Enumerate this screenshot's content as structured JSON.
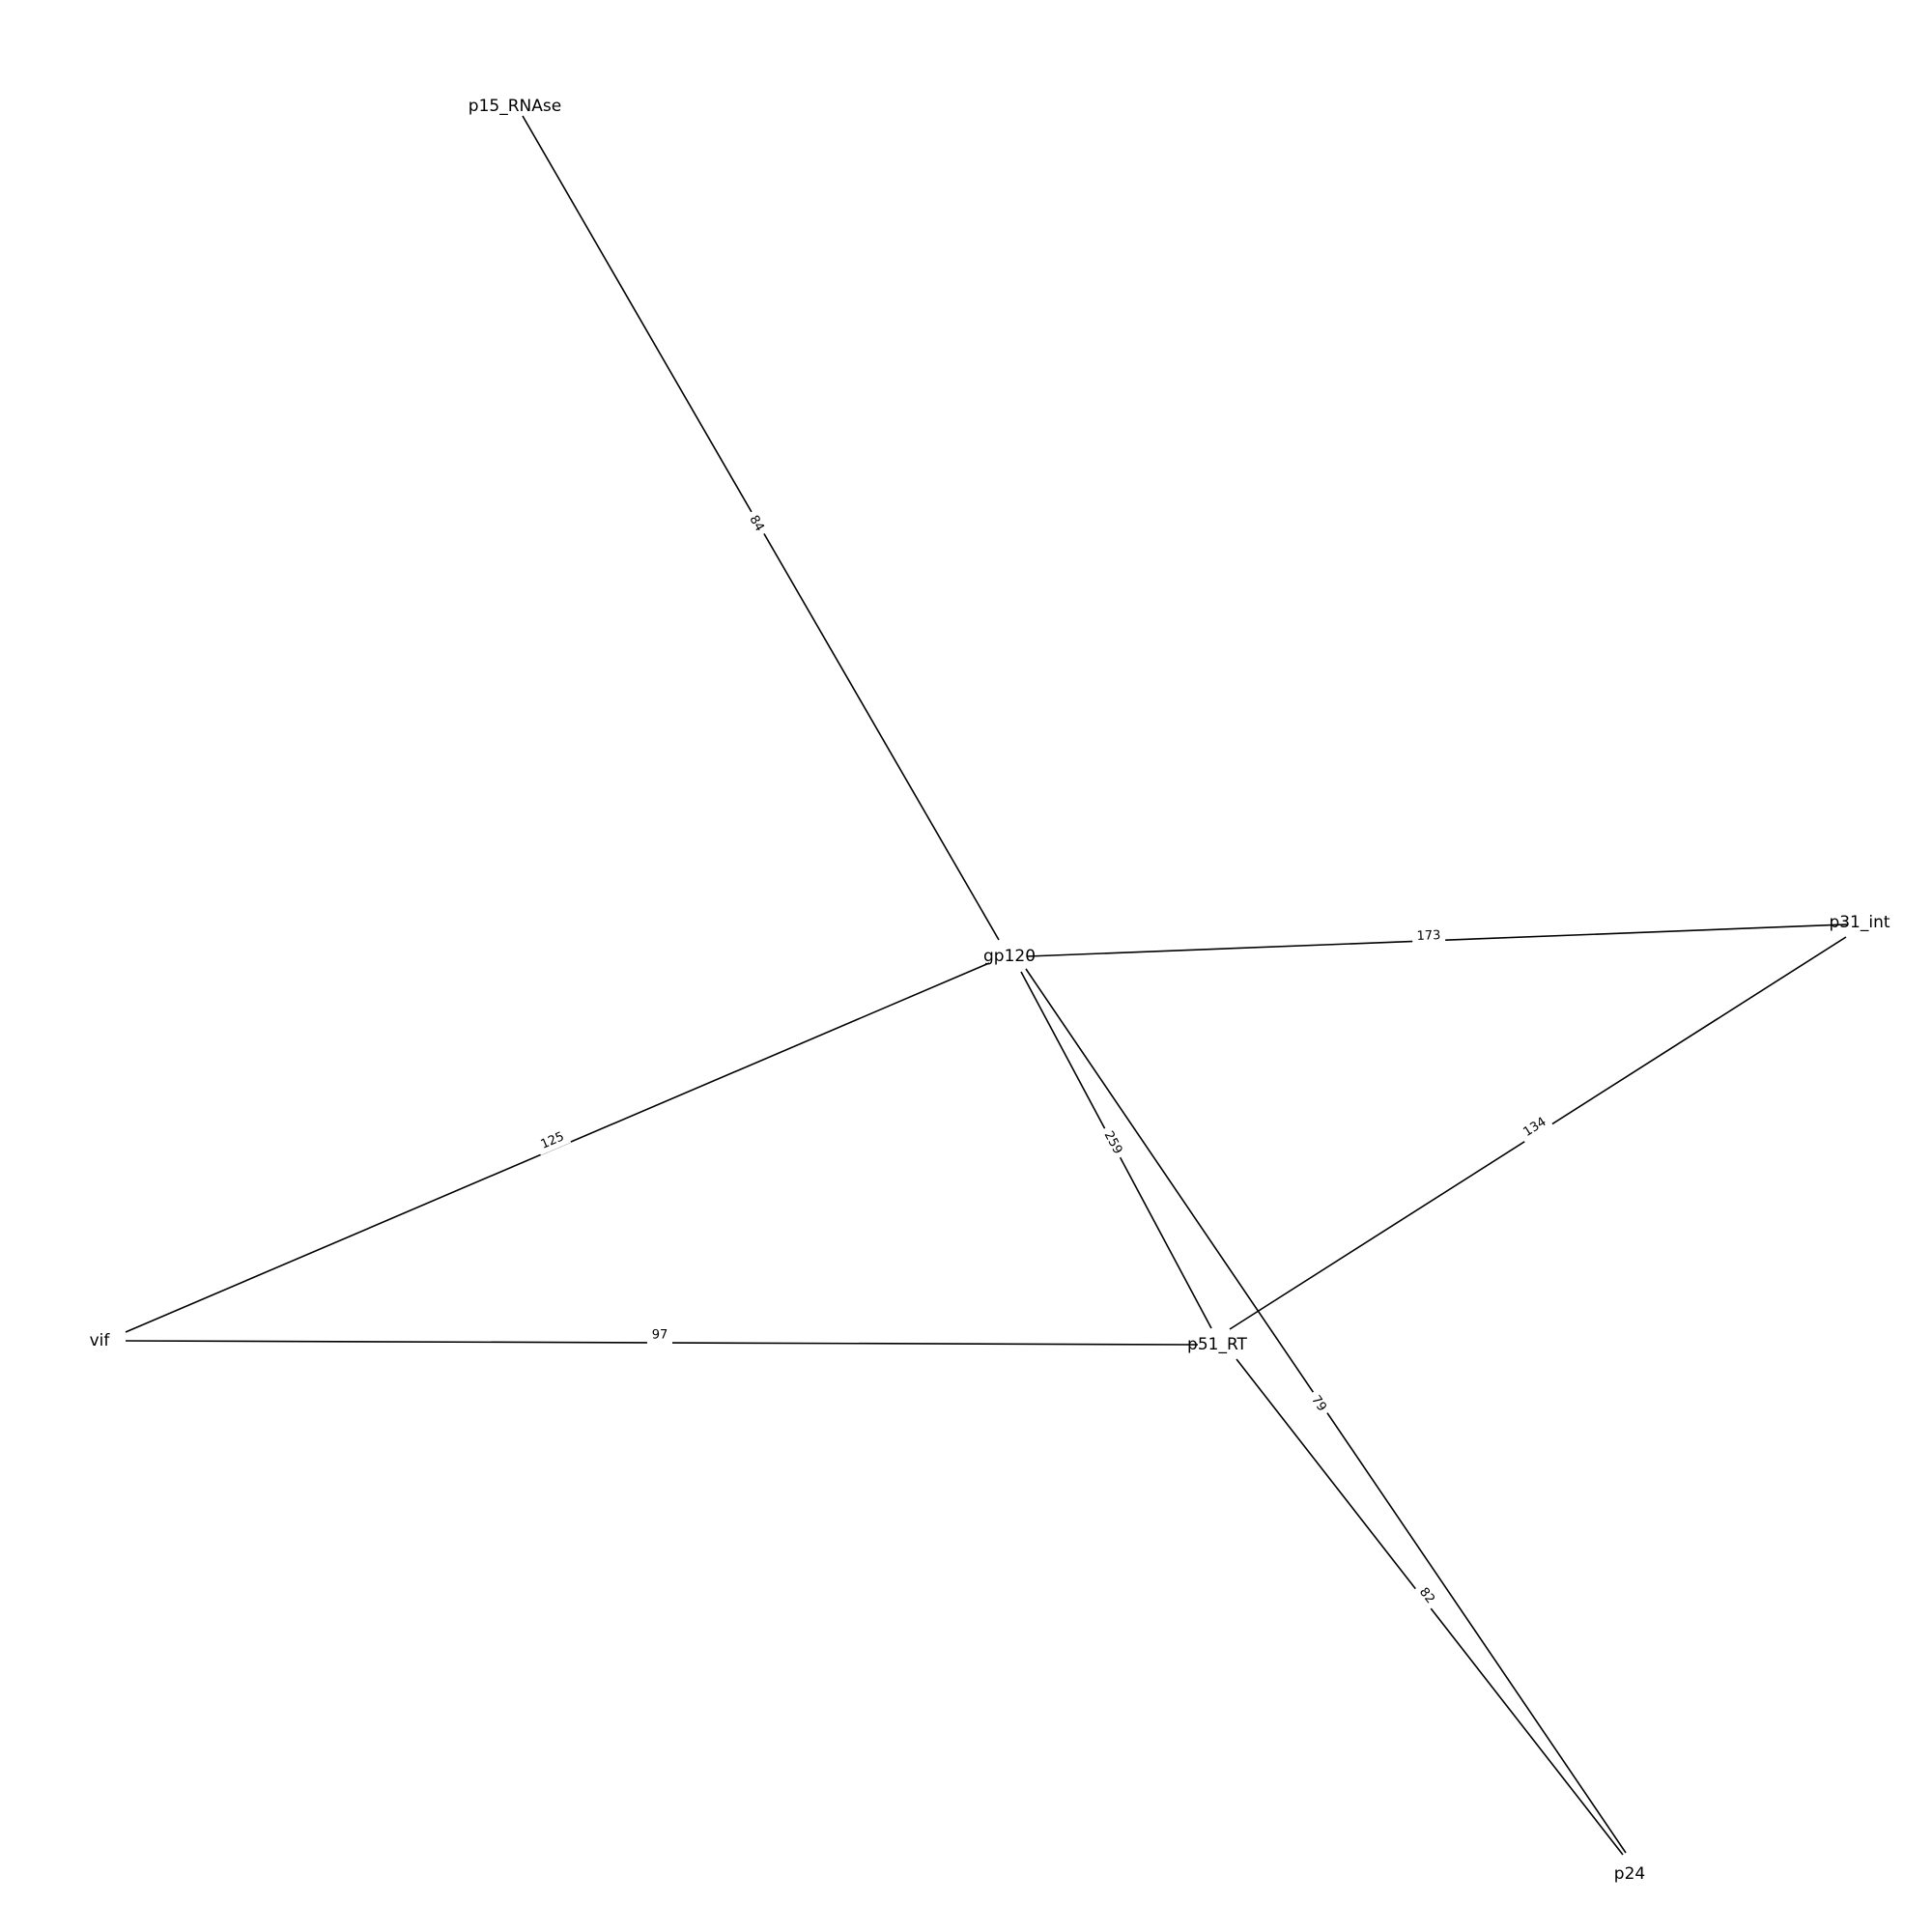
{
  "nodes": [
    {
      "id": "p15_RNAse",
      "label": "p15_RNAse"
    },
    {
      "id": "gp120",
      "label": "gp120"
    },
    {
      "id": "p31_int",
      "label": "p31_int"
    },
    {
      "id": "vif",
      "label": "vif"
    },
    {
      "id": "p51_RT",
      "label": "p51_RT"
    },
    {
      "id": "p24",
      "label": "p24"
    }
  ],
  "edges": [
    {
      "source": "p15_RNAse",
      "target": "gp120",
      "label": "84"
    },
    {
      "source": "gp120",
      "target": "p31_int",
      "label": "173"
    },
    {
      "source": "gp120",
      "target": "vif",
      "label": "125"
    },
    {
      "source": "gp120",
      "target": "p51_RT",
      "label": "259"
    },
    {
      "source": "gp120",
      "target": "p24",
      "label": "79"
    },
    {
      "source": "p51_RT",
      "target": "p31_int",
      "label": "134"
    },
    {
      "source": "vif",
      "target": "p51_RT",
      "label": "97"
    },
    {
      "source": "p51_RT",
      "target": "p24",
      "label": "82"
    }
  ]
}
